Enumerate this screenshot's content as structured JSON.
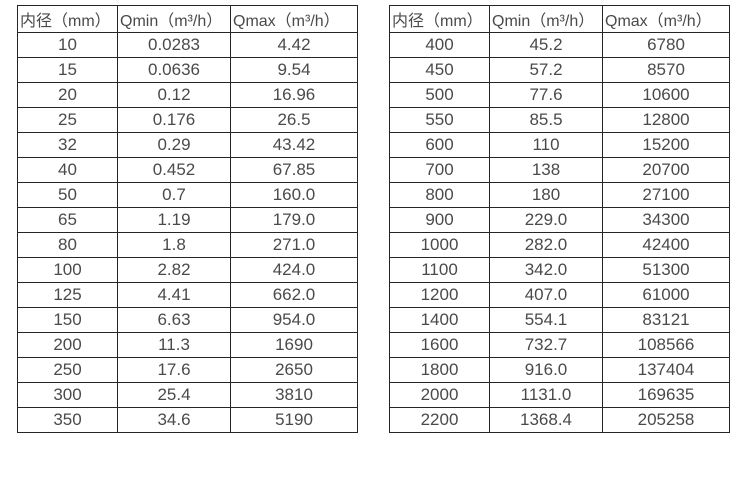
{
  "colors": {
    "background": "#ffffff",
    "border": "#262626",
    "text": "#4a4a4a"
  },
  "chart_data": [
    {
      "type": "table",
      "title": "",
      "columns": [
        "内径（mm）",
        "Qmin（m³/h）",
        "Qmax（m³/h）"
      ],
      "rows": [
        [
          "10",
          "0.0283",
          "4.42"
        ],
        [
          "15",
          "0.0636",
          "9.54"
        ],
        [
          "20",
          "0.12",
          "16.96"
        ],
        [
          "25",
          "0.176",
          "26.5"
        ],
        [
          "32",
          "0.29",
          "43.42"
        ],
        [
          "40",
          "0.452",
          "67.85"
        ],
        [
          "50",
          "0.7",
          "160.0"
        ],
        [
          "65",
          "1.19",
          "179.0"
        ],
        [
          "80",
          "1.8",
          "271.0"
        ],
        [
          "100",
          "2.82",
          "424.0"
        ],
        [
          "125",
          "4.41",
          "662.0"
        ],
        [
          "150",
          "6.63",
          "954.0"
        ],
        [
          "200",
          "11.3",
          "1690"
        ],
        [
          "250",
          "17.6",
          "2650"
        ],
        [
          "300",
          "25.4",
          "3810"
        ],
        [
          "350",
          "34.6",
          "5190"
        ]
      ]
    },
    {
      "type": "table",
      "title": "",
      "columns": [
        "内径（mm）",
        "Qmin（m³/h）",
        "Qmax（m³/h）"
      ],
      "rows": [
        [
          "400",
          "45.2",
          "6780"
        ],
        [
          "450",
          "57.2",
          "8570"
        ],
        [
          "500",
          "77.6",
          "10600"
        ],
        [
          "550",
          "85.5",
          "12800"
        ],
        [
          "600",
          "110",
          "15200"
        ],
        [
          "700",
          "138",
          "20700"
        ],
        [
          "800",
          "180",
          "27100"
        ],
        [
          "900",
          "229.0",
          "34300"
        ],
        [
          "1000",
          "282.0",
          "42400"
        ],
        [
          "1100",
          "342.0",
          "51300"
        ],
        [
          "1200",
          "407.0",
          "61000"
        ],
        [
          "1400",
          "554.1",
          "83121"
        ],
        [
          "1600",
          "732.7",
          "108566"
        ],
        [
          "1800",
          "916.0",
          "137404"
        ],
        [
          "2000",
          "1131.0",
          "169635"
        ],
        [
          "2200",
          "1368.4",
          "205258"
        ]
      ]
    }
  ]
}
